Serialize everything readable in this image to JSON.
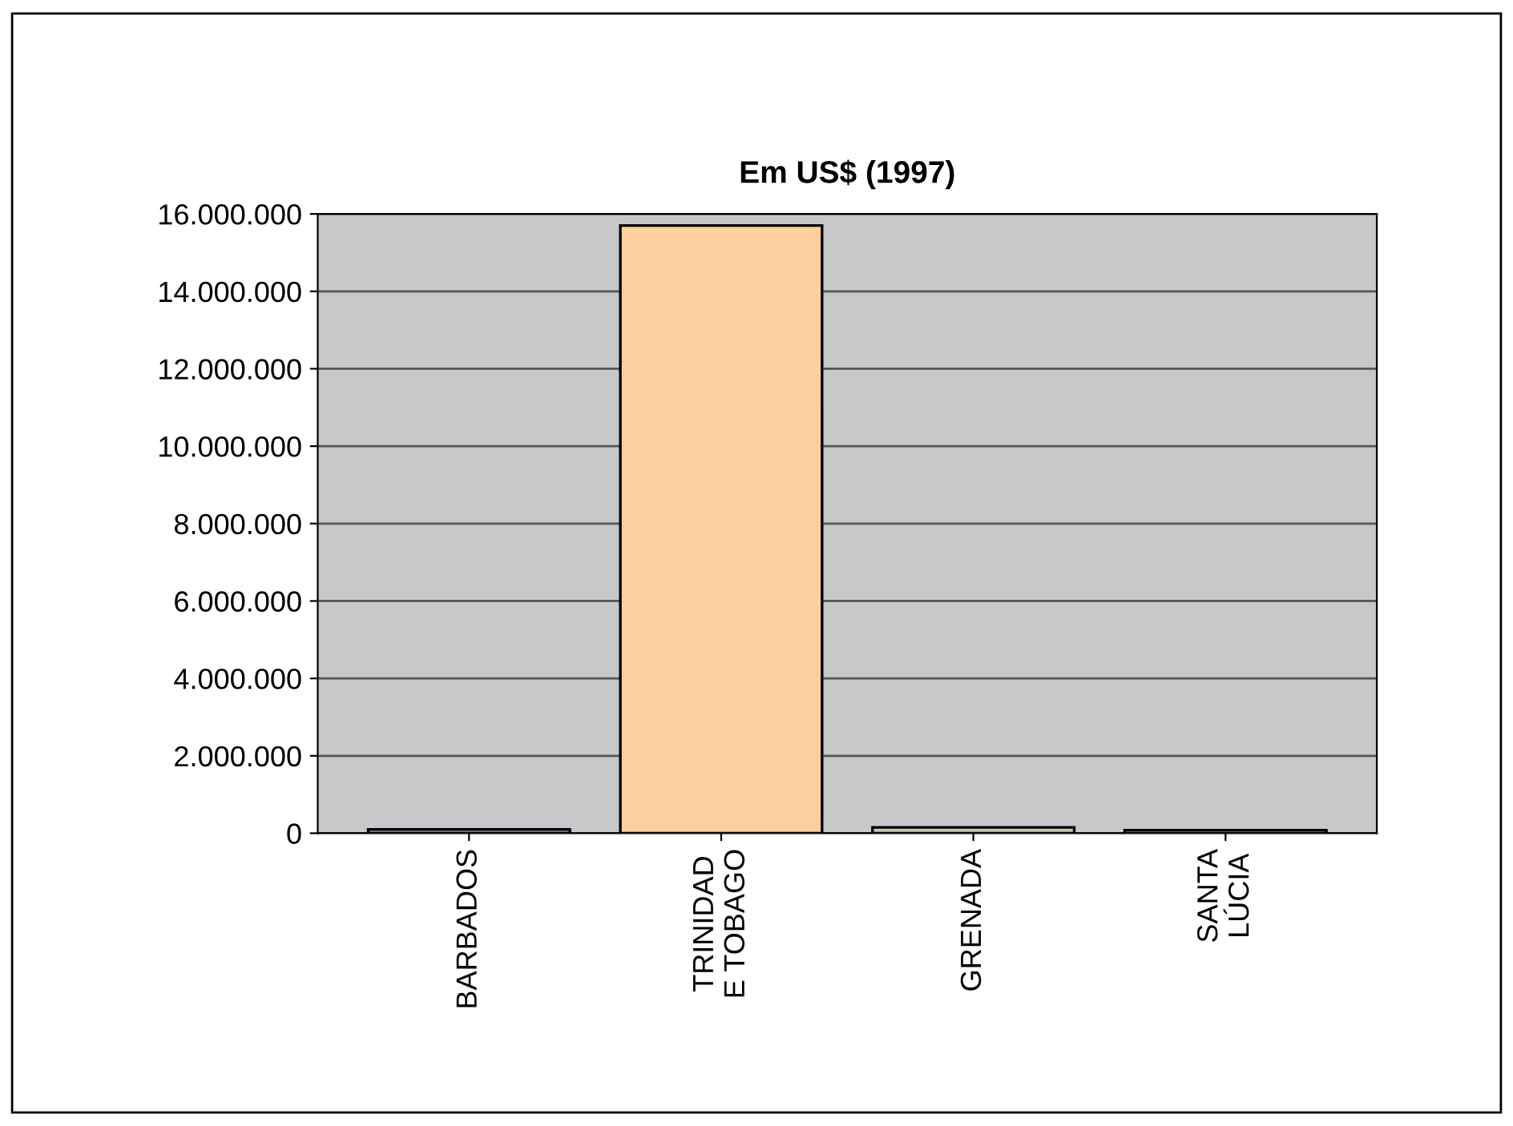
{
  "chart_data": {
    "type": "bar",
    "title": "Em US$ (1997)",
    "categories": [
      "BARBADOS",
      "TRINIDAD\nE TOBAGO",
      "GRENADA",
      "SANTA\nLÚCIA"
    ],
    "values": [
      100000,
      15700000,
      150000,
      80000
    ],
    "colors": [
      "#8e8aae",
      "#fccf9f",
      "#c8c8b2",
      "#a7bcc7"
    ],
    "ylim": [
      0,
      16000000
    ],
    "yticks": [
      {
        "value": 0,
        "label": "0"
      },
      {
        "value": 2000000,
        "label": "2.000.000"
      },
      {
        "value": 4000000,
        "label": "4.000.000"
      },
      {
        "value": 6000000,
        "label": "6.000.000"
      },
      {
        "value": 8000000,
        "label": "8.000.000"
      },
      {
        "value": 10000000,
        "label": "10.000.000"
      },
      {
        "value": 12000000,
        "label": "12.000.000"
      },
      {
        "value": 14000000,
        "label": "14.000.000"
      },
      {
        "value": 16000000,
        "label": "16.000.000"
      }
    ],
    "grid": "y"
  }
}
